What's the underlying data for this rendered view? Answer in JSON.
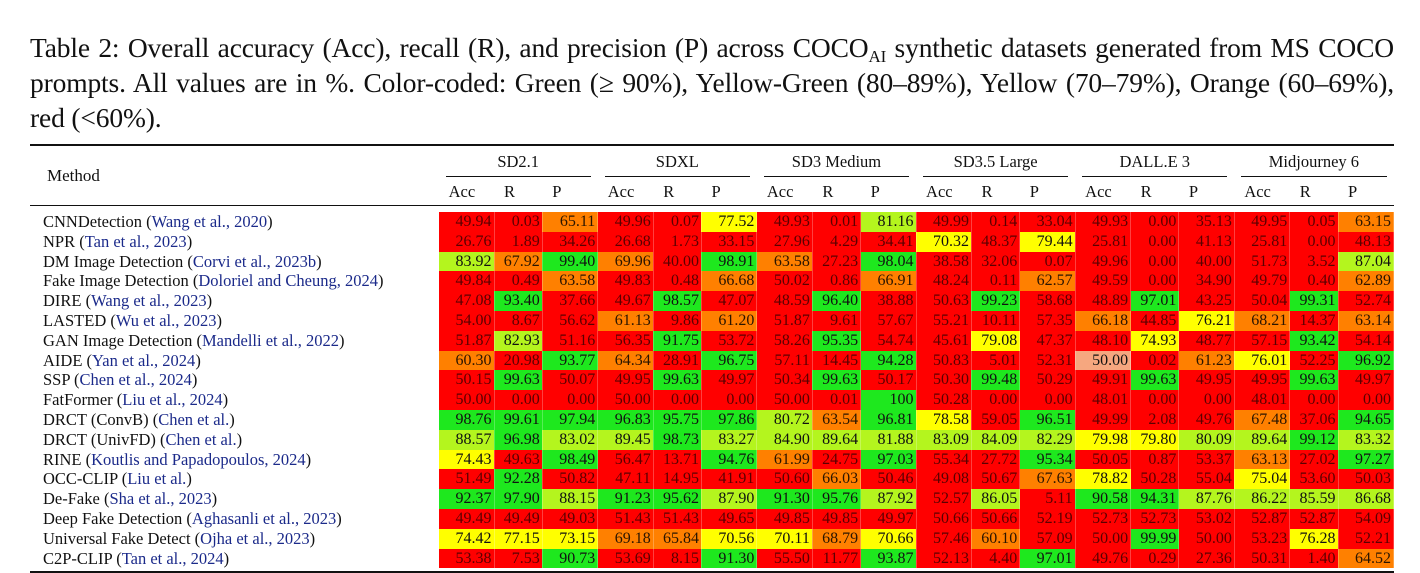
{
  "caption": {
    "prefix": "Table 2: Overall accuracy (Acc), recall (R), and precision (P) across COCO",
    "subscript": "AI",
    "suffix": " synthetic datasets generated from MS COCO prompts. All values are in %. Color-coded: Green (≥ 90%), Yellow-Green (80–89%), Yellow (70–79%), Orange (60–69%), red (<60%)."
  },
  "legend_colors": {
    "green": "#1ee81e",
    "yellow_green": "#b4f51e",
    "yellow": "#ffff00",
    "orange": "#ff8000",
    "red": "#ff0000",
    "salmon": "#f6a77f"
  },
  "table": {
    "method_header": "Method",
    "datasets": [
      "SD2.1",
      "SDXL",
      "SD3 Medium",
      "SD3.5 Large",
      "DALL.E 3",
      "Midjourney 6"
    ],
    "metrics": [
      "Acc",
      "R",
      "P"
    ],
    "rows": [
      {
        "method": "CNNDetection",
        "cite": "Wang et al., 2020",
        "values": [
          "49.94",
          "0.03",
          "65.11",
          "49.96",
          "0.07",
          "77.52",
          "49.93",
          "0.01",
          "81.16",
          "49.99",
          "0.14",
          "33.04",
          "49.93",
          "0.00",
          "35.13",
          "49.95",
          "0.05",
          "63.15"
        ]
      },
      {
        "method": "NPR",
        "cite": "Tan et al., 2023",
        "values": [
          "26.76",
          "1.89",
          "34.26",
          "26.68",
          "1.73",
          "33.15",
          "27.96",
          "4.29",
          "34.41",
          "70.32",
          "48.37",
          "79.44",
          "25.81",
          "0.00",
          "41.13",
          "25.81",
          "0.00",
          "48.13"
        ]
      },
      {
        "method": "DM Image Detection",
        "cite": "Corvi et al., 2023b",
        "values": [
          "83.92",
          "67.92",
          "99.40",
          "69.96",
          "40.00",
          "98.91",
          "63.58",
          "27.23",
          "98.04",
          "38.58",
          "32.06",
          "0.07",
          "49.96",
          "0.00",
          "40.00",
          "51.73",
          "3.52",
          "87.04"
        ]
      },
      {
        "method": "Fake Image Detection",
        "cite": "Doloriel and Cheung, 2024",
        "values": [
          "49.84",
          "0.49",
          "63.58",
          "49.83",
          "0.48",
          "66.68",
          "50.02",
          "0.86",
          "66.91",
          "48.24",
          "0.11",
          "62.57",
          "49.59",
          "0.00",
          "34.90",
          "49.79",
          "0.40",
          "62.89"
        ]
      },
      {
        "method": "DIRE",
        "cite": "Wang et al., 2023",
        "values": [
          "47.08",
          "93.40",
          "37.66",
          "49.67",
          "98.57",
          "47.07",
          "48.59",
          "96.40",
          "38.88",
          "50.63",
          "99.23",
          "58.68",
          "48.89",
          "97.01",
          "43.25",
          "50.04",
          "99.31",
          "52.74"
        ]
      },
      {
        "method": "LASTED",
        "cite": "Wu et al., 2023",
        "values": [
          "54.00",
          "8.67",
          "56.62",
          "61.13",
          "9.86",
          "61.20",
          "51.87",
          "9.61",
          "57.67",
          "55.21",
          "10.11",
          "57.35",
          "66.18",
          "44.85",
          "76.21",
          "68.21",
          "14.37",
          "63.14"
        ]
      },
      {
        "method": "GAN Image Detection",
        "cite": "Mandelli et al., 2022",
        "values": [
          "51.87",
          "82.93",
          "51.16",
          "56.35",
          "91.75",
          "53.72",
          "58.26",
          "95.35",
          "54.74",
          "45.61",
          "79.08",
          "47.37",
          "48.10",
          "74.93",
          "48.77",
          "57.15",
          "93.42",
          "54.14"
        ]
      },
      {
        "method": "AIDE",
        "cite": "Yan et al., 2024",
        "values": [
          "60.30",
          "20.98",
          "93.77",
          "64.34",
          "28.91",
          "96.75",
          "57.11",
          "14.45",
          "94.28",
          "50.83",
          "5.01",
          "52.31",
          "50.00",
          "0.02",
          "61.23",
          "76.01",
          "52.25",
          "96.92"
        ]
      },
      {
        "method": "SSP",
        "cite": "Chen et al., 2024",
        "values": [
          "50.15",
          "99.63",
          "50.07",
          "49.95",
          "99.63",
          "49.97",
          "50.34",
          "99.63",
          "50.17",
          "50.30",
          "99.48",
          "50.29",
          "49.91",
          "99.63",
          "49.95",
          "49.95",
          "99.63",
          "49.97"
        ]
      },
      {
        "method": "FatFormer",
        "cite": "Liu et al., 2024",
        "values": [
          "50.00",
          "0.00",
          "0.00",
          "50.00",
          "0.00",
          "0.00",
          "50.00",
          "0.01",
          "100",
          "50.28",
          "0.00",
          "0.00",
          "48.01",
          "0.00",
          "0.00",
          "48.01",
          "0.00",
          "0.00"
        ]
      },
      {
        "method": "DRCT (ConvB)",
        "cite": "Chen et al.",
        "values": [
          "98.76",
          "99.61",
          "97.94",
          "96.83",
          "95.75",
          "97.86",
          "80.72",
          "63.54",
          "96.81",
          "78.58",
          "59.05",
          "96.51",
          "49.99",
          "2.08",
          "49.76",
          "67.48",
          "37.06",
          "94.65"
        ]
      },
      {
        "method": "DRCT (UnivFD)",
        "cite": "Chen et al.",
        "values": [
          "88.57",
          "96.98",
          "83.02",
          "89.45",
          "98.73",
          "83.27",
          "84.90",
          "89.64",
          "81.88",
          "83.09",
          "84.09",
          "82.29",
          "79.98",
          "79.80",
          "80.09",
          "89.64",
          "99.12",
          "83.32"
        ]
      },
      {
        "method": "RINE",
        "cite": "Koutlis and Papadopoulos, 2024",
        "values": [
          "74.43",
          "49.63",
          "98.49",
          "56.47",
          "13.71",
          "94.76",
          "61.99",
          "24.75",
          "97.03",
          "55.34",
          "27.72",
          "95.34",
          "50.05",
          "0.87",
          "53.37",
          "63.13",
          "27.02",
          "97.27"
        ]
      },
      {
        "method": "OCC-CLIP",
        "cite": "Liu et al.",
        "values": [
          "51.49",
          "92.28",
          "50.82",
          "47.11",
          "14.95",
          "41.91",
          "50.60",
          "66.03",
          "50.46",
          "49.08",
          "50.67",
          "67.63",
          "78.82",
          "50.28",
          "55.04",
          "75.04",
          "53.60",
          "50.03"
        ]
      },
      {
        "method": "De-Fake",
        "cite": "Sha et al., 2023",
        "values": [
          "92.37",
          "97.90",
          "88.15",
          "91.23",
          "95.62",
          "87.90",
          "91.30",
          "95.76",
          "87.92",
          "52.57",
          "86.05",
          "5.11",
          "90.58",
          "94.31",
          "87.76",
          "86.22",
          "85.59",
          "86.68"
        ]
      },
      {
        "method": "Deep Fake Detection",
        "cite": "Aghasanli et al., 2023",
        "values": [
          "49.49",
          "49.49",
          "49.03",
          "51.43",
          "51.43",
          "49.65",
          "49.85",
          "49.85",
          "49.97",
          "50.66",
          "50.66",
          "52.19",
          "52.73",
          "52.73",
          "53.02",
          "52.87",
          "52.87",
          "54.09"
        ]
      },
      {
        "method": "Universal Fake Detect",
        "cite": "Ojha et al., 2023",
        "values": [
          "74.42",
          "77.15",
          "73.15",
          "69.18",
          "65.84",
          "70.56",
          "70.11",
          "68.79",
          "70.66",
          "57.46",
          "60.10",
          "57.09",
          "50.00",
          "99.99",
          "50.00",
          "53.23",
          "76.28",
          "52.21"
        ]
      },
      {
        "method": "C2P-CLIP",
        "cite": "Tan et al., 2024",
        "values": [
          "53.38",
          "7.53",
          "90.73",
          "53.69",
          "8.15",
          "91.30",
          "55.50",
          "11.77",
          "93.87",
          "52.13",
          "4.40",
          "97.01",
          "49.76",
          "0.29",
          "27.36",
          "50.31",
          "1.40",
          "64.52"
        ]
      }
    ],
    "special_cells": [
      {
        "row": 7,
        "col": 12,
        "color": "salmon"
      }
    ]
  }
}
